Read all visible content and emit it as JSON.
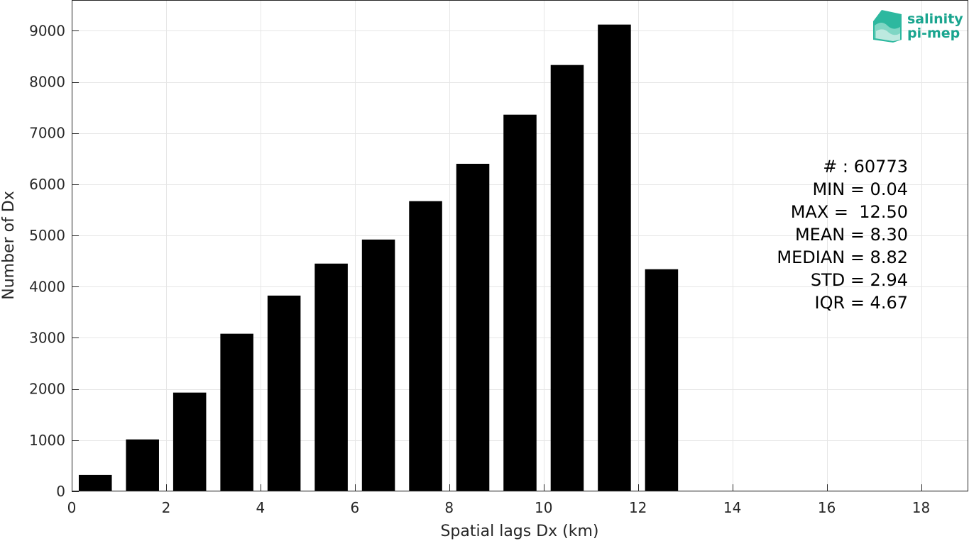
{
  "chart_data": {
    "type": "bar",
    "x": [
      0.5,
      1.5,
      2.5,
      3.5,
      4.5,
      5.5,
      6.5,
      7.5,
      8.5,
      9.5,
      10.5,
      11.5,
      12.5
    ],
    "values": [
      320,
      1015,
      1930,
      3080,
      3825,
      4450,
      4920,
      5670,
      6400,
      7360,
      8330,
      9120,
      4340
    ],
    "bar_width": 0.7,
    "xlabel": "Spatial lags Dx (km)",
    "ylabel": "Number of Dx",
    "xlim": [
      0,
      19
    ],
    "ylim": [
      0,
      9600
    ],
    "xticks": [
      0,
      2,
      4,
      6,
      8,
      10,
      12,
      14,
      16,
      18
    ],
    "yticks": [
      0,
      1000,
      2000,
      3000,
      4000,
      5000,
      6000,
      7000,
      8000,
      9000
    ],
    "grid": true,
    "bar_color": "#000000",
    "annotations": [
      "# : 60773",
      "MIN = 0.04",
      "MAX =  12.50",
      "MEAN = 8.30",
      "MEDIAN = 8.82",
      "STD = 2.94",
      "IQR = 4.67"
    ]
  },
  "logo": {
    "line1": "salinity",
    "line2": "pi-mep",
    "color": "#1aa58f"
  }
}
